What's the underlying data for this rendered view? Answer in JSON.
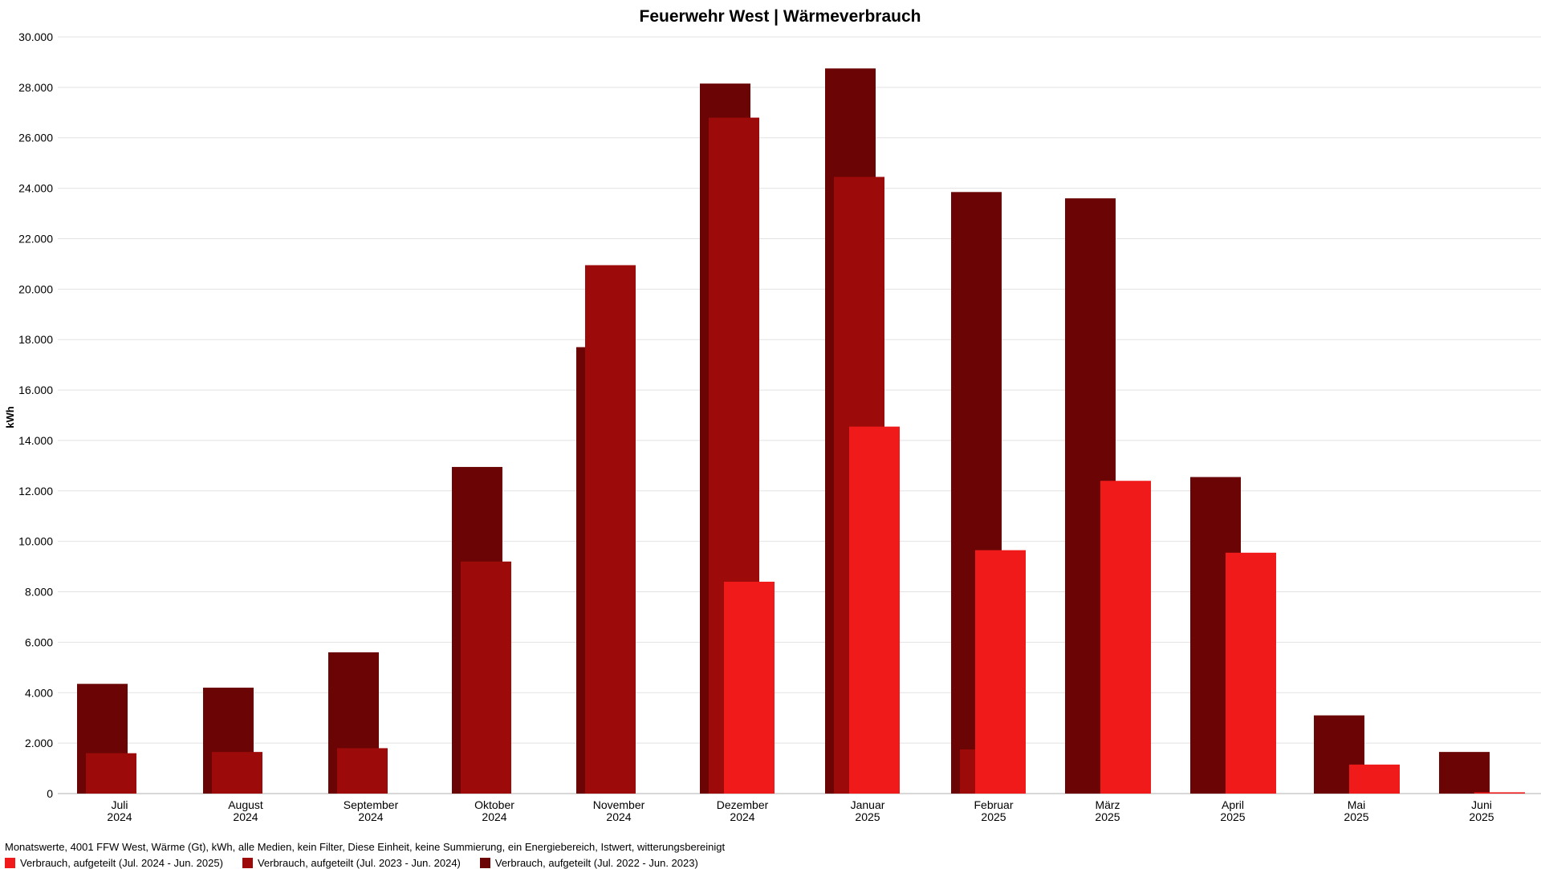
{
  "chart_data": {
    "type": "bar",
    "title": "Feuerwehr West | Wärmeverbrauch",
    "ylabel": "kWh",
    "ylim": [
      0,
      30000
    ],
    "yticks": [
      0,
      2000,
      4000,
      6000,
      8000,
      10000,
      12000,
      14000,
      16000,
      18000,
      20000,
      22000,
      24000,
      26000,
      28000,
      30000
    ],
    "ytick_labels": [
      "0",
      "2.000",
      "4.000",
      "6.000",
      "8.000",
      "10.000",
      "12.000",
      "14.000",
      "16.000",
      "18.000",
      "20.000",
      "22.000",
      "24.000",
      "26.000",
      "28.000",
      "30.000"
    ],
    "grid": true,
    "categories": [
      [
        "Juli",
        "2024"
      ],
      [
        "August",
        "2024"
      ],
      [
        "September",
        "2024"
      ],
      [
        "Oktober",
        "2024"
      ],
      [
        "November",
        "2024"
      ],
      [
        "Dezember",
        "2024"
      ],
      [
        "Januar",
        "2025"
      ],
      [
        "Februar",
        "2025"
      ],
      [
        "März",
        "2025"
      ],
      [
        "April",
        "2025"
      ],
      [
        "Mai",
        "2025"
      ],
      [
        "Juni",
        "2025"
      ]
    ],
    "series": [
      {
        "name": "Verbrauch, aufgeteilt (Jul. 2022 - Jun. 2023)",
        "color": "#6b0505",
        "values": [
          4350,
          4200,
          5600,
          12950,
          17700,
          28150,
          28750,
          23850,
          23600,
          12550,
          3100,
          1650
        ]
      },
      {
        "name": "Verbrauch, aufgeteilt (Jul. 2023 - Jun. 2024)",
        "color": "#9c0a0a",
        "values": [
          1600,
          1650,
          1800,
          9200,
          20950,
          26800,
          24450,
          1750,
          null,
          null,
          null,
          null
        ]
      },
      {
        "name": "Verbrauch, aufgeteilt (Jul. 2024 - Jun. 2025)",
        "color": "#f01a1a",
        "values": [
          null,
          null,
          null,
          null,
          null,
          8400,
          14550,
          9650,
          12400,
          9550,
          1150,
          50
        ]
      }
    ],
    "legend_position": "bottom-left"
  },
  "footer": "Monatswerte, 4001 FFW West, Wärme (Gt), kWh, alle Medien, kein Filter, Diese Einheit, keine Summierung, ein Energiebereich, Istwert, witterungsbereinigt",
  "legend_items": [
    {
      "label": "Verbrauch, aufgeteilt (Jul. 2024 - Jun. 2025)",
      "color": "#f01a1a"
    },
    {
      "label": "Verbrauch, aufgeteilt (Jul. 2023 - Jun. 2024)",
      "color": "#9c0a0a"
    },
    {
      "label": "Verbrauch, aufgeteilt (Jul. 2022 - Jun. 2023)",
      "color": "#6b0505"
    }
  ]
}
